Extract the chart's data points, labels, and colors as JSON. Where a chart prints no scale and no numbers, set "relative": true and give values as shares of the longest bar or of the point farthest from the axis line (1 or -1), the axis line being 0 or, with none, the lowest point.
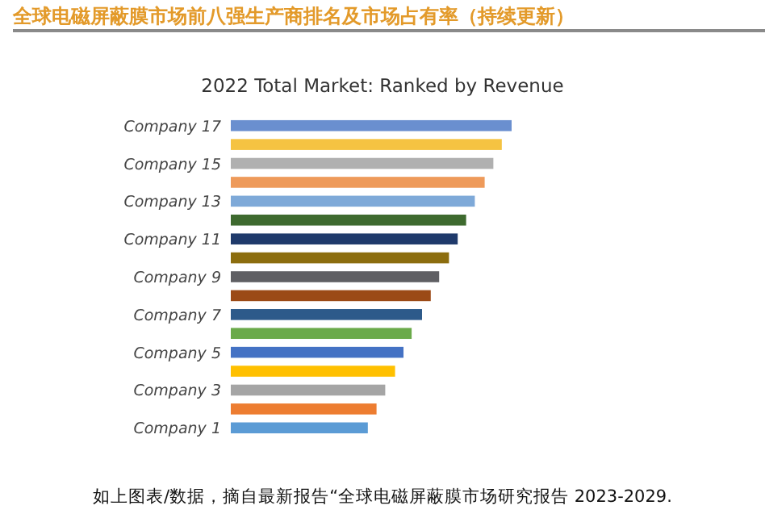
{
  "chart_data": {
    "type": "bar",
    "orientation": "horizontal",
    "relative": true,
    "title": "全球电磁屏蔽膜市场前八强生产商排名及市场占有率（持续更新）",
    "subtitle": "2022 Total Market: Ranked by Revenue",
    "categories": [
      "Company 17",
      null,
      "Company 15",
      null,
      "Company 13",
      null,
      "Company 11",
      null,
      "Company 9",
      null,
      "Company 7",
      null,
      "Company 5",
      null,
      "Company 3",
      null,
      "Company 1"
    ],
    "values": [
      1,
      0.965,
      0.935,
      0.904,
      0.869,
      0.838,
      0.808,
      0.777,
      0.742,
      0.712,
      0.681,
      0.644,
      0.615,
      0.585,
      0.55,
      0.519,
      0.488
    ],
    "colors": [
      "#6a8fcf",
      "#f5c342",
      "#b0b0b0",
      "#ee9a5a",
      "#7ea9d8",
      "#3e6a2f",
      "#1f3a6b",
      "#8c6d0e",
      "#5f5f63",
      "#9b4a16",
      "#2d5a8a",
      "#6aaa4a",
      "#4472c4",
      "#ffc000",
      "#a5a5a5",
      "#ed7d31",
      "#5b9bd5"
    ],
    "annotations": [
      "如上图表/数据，摘自最新报告“全球电磁屏蔽膜市场研究报告 2023-2029."
    ]
  }
}
